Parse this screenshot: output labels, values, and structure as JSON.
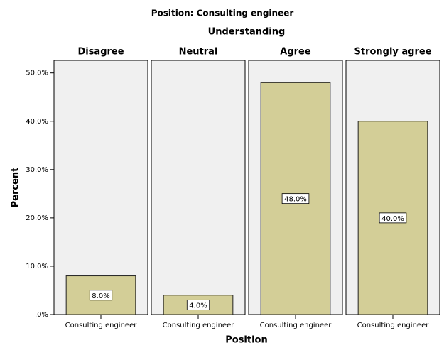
{
  "chart_data": {
    "type": "bar",
    "title": "Position: Consulting engineer",
    "panel_title": "Understanding",
    "x_label": "Position",
    "y_label": "Percent",
    "color": "#d3ce97",
    "ylim": [
      0,
      52.6
    ],
    "yticks": [
      {
        "value": 0,
        "label": ".0%"
      },
      {
        "value": 10,
        "label": "10.0%"
      },
      {
        "value": 20,
        "label": "20.0%"
      },
      {
        "value": 30,
        "label": "30.0%"
      },
      {
        "value": 40,
        "label": "40.0%"
      },
      {
        "value": 50,
        "label": "50.0%"
      }
    ],
    "panels": [
      {
        "name": "Disagree",
        "categories": [
          "Consulting engineer"
        ],
        "values": [
          8
        ],
        "value_labels": [
          "8.0%"
        ]
      },
      {
        "name": "Neutral",
        "categories": [
          "Consulting engineer"
        ],
        "values": [
          4
        ],
        "value_labels": [
          "4.0%"
        ]
      },
      {
        "name": "Agree",
        "categories": [
          "Consulting engineer"
        ],
        "values": [
          48
        ],
        "value_labels": [
          "48.0%"
        ]
      },
      {
        "name": "Strongly agree",
        "categories": [
          "Consulting engineer"
        ],
        "values": [
          40
        ],
        "value_labels": [
          "40.0%"
        ]
      }
    ]
  }
}
